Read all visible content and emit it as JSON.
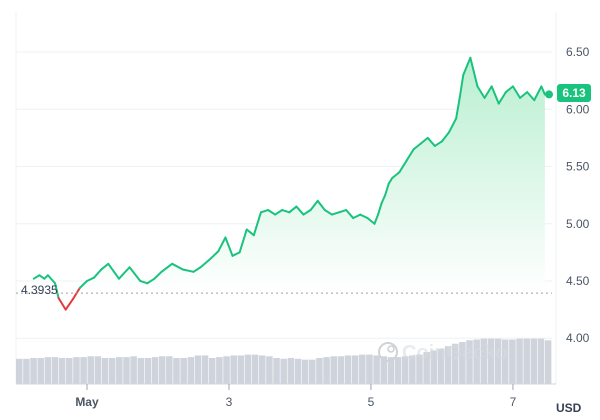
{
  "currency_label": "USD",
  "reference_label": "4.3935",
  "current_price_label": "6.13",
  "watermark_text": "CoinGecko",
  "colors": {
    "up_line": "#19c37d",
    "down_line": "#e23b3b",
    "fill_top": "#b9efd0",
    "fill_bottom": "#ffffff",
    "volume": "#cfd4dc",
    "grid": "#eef0f3",
    "axis_text": "#4b5563",
    "badge": "#19c37d"
  },
  "chart_data": {
    "type": "line",
    "title": "",
    "xlabel": "",
    "ylabel": "",
    "x_ticks": [
      "May",
      "3",
      "5",
      "7"
    ],
    "y_ticks": [
      "6.50",
      "6.00",
      "5.50",
      "5.00",
      "4.50",
      "4.00"
    ],
    "ylim": [
      3.6,
      6.85
    ],
    "xlim": [
      0,
      7.55
    ],
    "grid": true,
    "reference_price": 4.3935,
    "current_price": 6.13,
    "series": [
      {
        "values_x": [
          0.25,
          0.33,
          0.4,
          0.45,
          0.55,
          0.6,
          0.7,
          0.8,
          0.9,
          1.0,
          1.1,
          1.2,
          1.3,
          1.45,
          1.6,
          1.75,
          1.85,
          1.95,
          2.05,
          2.2,
          2.35,
          2.5,
          2.6,
          2.75,
          2.85,
          2.95,
          3.05,
          3.15,
          3.25,
          3.35,
          3.45,
          3.55,
          3.65,
          3.75,
          3.85,
          3.95,
          4.05,
          4.15,
          4.25,
          4.35,
          4.45,
          4.55,
          4.65,
          4.75,
          4.85,
          4.95,
          5.05,
          5.1,
          5.15,
          5.2,
          5.25,
          5.3,
          5.4,
          5.5,
          5.6,
          5.7,
          5.8,
          5.9,
          6.0,
          6.1,
          6.2,
          6.25,
          6.3,
          6.4,
          6.5,
          6.6,
          6.7,
          6.8,
          6.9,
          7.0,
          7.1,
          7.2,
          7.3,
          7.4,
          7.45
        ],
        "values_y": [
          4.52,
          4.55,
          4.52,
          4.55,
          4.48,
          4.35,
          4.25,
          4.34,
          4.44,
          4.5,
          4.53,
          4.6,
          4.65,
          4.52,
          4.62,
          4.5,
          4.48,
          4.52,
          4.58,
          4.65,
          4.6,
          4.58,
          4.62,
          4.7,
          4.76,
          4.88,
          4.72,
          4.75,
          4.95,
          4.9,
          5.1,
          5.12,
          5.08,
          5.12,
          5.1,
          5.15,
          5.08,
          5.12,
          5.2,
          5.12,
          5.08,
          5.1,
          5.12,
          5.05,
          5.08,
          5.05,
          5.0,
          5.08,
          5.18,
          5.25,
          5.35,
          5.4,
          5.45,
          5.55,
          5.65,
          5.7,
          5.75,
          5.68,
          5.72,
          5.8,
          5.92,
          6.1,
          6.3,
          6.45,
          6.2,
          6.1,
          6.2,
          6.05,
          6.15,
          6.2,
          6.1,
          6.15,
          6.08,
          6.2,
          6.13
        ]
      }
    ],
    "volume": [
      30,
      30,
      31,
      31,
      32,
      32,
      31,
      31,
      32,
      32,
      33,
      33,
      31,
      31,
      32,
      32,
      33,
      31,
      31,
      32,
      33,
      33,
      31,
      31,
      32,
      34,
      34,
      31,
      32,
      33,
      34,
      34,
      35,
      35,
      34,
      33,
      31,
      30,
      31,
      30,
      29,
      29,
      31,
      32,
      33,
      33,
      34,
      34,
      35,
      35,
      34,
      33,
      32,
      32,
      33,
      34,
      35,
      38,
      40,
      42,
      45,
      48,
      50,
      52,
      53,
      54,
      54,
      54,
      53,
      53,
      54,
      54,
      54,
      54,
      52
    ]
  }
}
